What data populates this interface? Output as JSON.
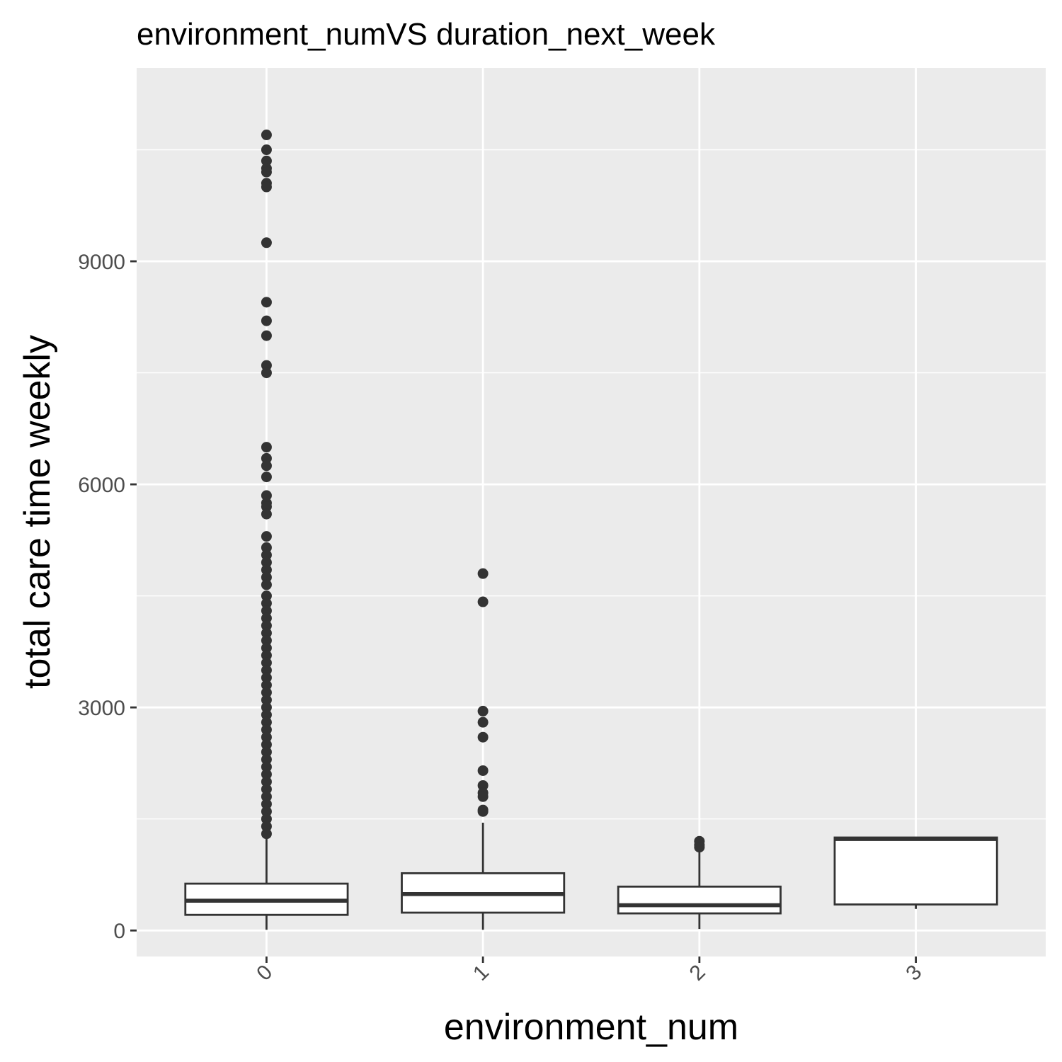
{
  "chart_data": {
    "type": "boxplot",
    "title": "environment_numVS duration_next_week",
    "xlabel": "environment_num",
    "ylabel": "total care time weekly",
    "categories": [
      "0",
      "1",
      "2",
      "3"
    ],
    "ylim": [
      -350,
      11600
    ],
    "y_ticks": [
      0,
      3000,
      6000,
      9000
    ],
    "y_tick_labels": [
      "0",
      "3000",
      "6000",
      "9000"
    ],
    "x_tick_rotation_deg": -45,
    "grid": true,
    "background": "#ebebeb",
    "grid_color": "#ffffff",
    "box_color": "#333333",
    "boxes": [
      {
        "category": "0",
        "min": 10,
        "q1": 210,
        "median": 400,
        "q3": 630,
        "max": 1250,
        "outliers": [
          10700,
          10500,
          10350,
          10250,
          10200,
          10050,
          10000,
          9250,
          8450,
          8200,
          8000,
          7600,
          7500,
          6500,
          6350,
          6250,
          6100,
          5850,
          5750,
          5700,
          5600,
          5300,
          5150,
          5050,
          4950,
          4850,
          4750,
          4650,
          4500,
          4400,
          4300,
          4200,
          4100,
          4000,
          3900,
          3800,
          3700,
          3600,
          3500,
          3400,
          3300,
          3200,
          3100,
          3000,
          2900,
          2800,
          2700,
          2600,
          2500,
          2400,
          2300,
          2200,
          2100,
          2000,
          1900,
          1800,
          1700,
          1600,
          1500,
          1400,
          1300
        ]
      },
      {
        "category": "1",
        "min": 10,
        "q1": 240,
        "median": 490,
        "q3": 770,
        "max": 1450,
        "outliers": [
          4800,
          4420,
          2950,
          2800,
          2600,
          2150,
          1950,
          1850,
          1800,
          1620,
          1600
        ]
      },
      {
        "category": "2",
        "min": 20,
        "q1": 230,
        "median": 340,
        "q3": 590,
        "max": 1050,
        "outliers": [
          1200,
          1150,
          1120
        ]
      },
      {
        "category": "3",
        "min": 290,
        "q1": 350,
        "median": 1230,
        "q3": 1250,
        "max": 1250,
        "outliers": []
      }
    ]
  }
}
